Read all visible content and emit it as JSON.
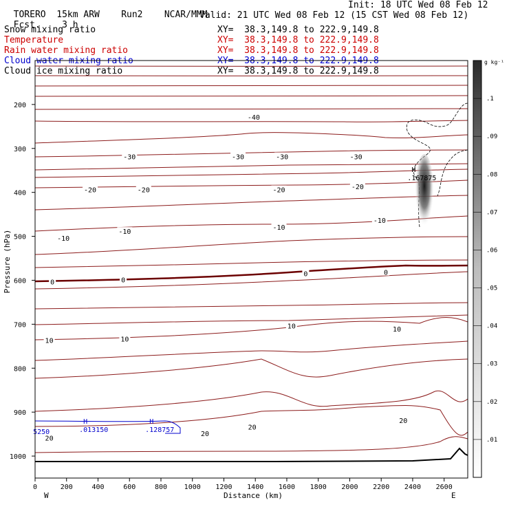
{
  "header": {
    "title": "TORERO  15km ARW",
    "run": "Run2",
    "org": "NCAR/MMM",
    "init": "Init: 18 UTC Wed 08 Feb 12",
    "fcst_label": "Fcst.",
    "fcst_value": "3 h",
    "valid": "Valid: 21 UTC Wed 08 Feb 12 (15 CST Wed 08 Feb 12)"
  },
  "fields": [
    {
      "name": "Snow mixing ratio",
      "xy": "XY=  38.3,149.8 to 222.9,149.8",
      "color": "#000000"
    },
    {
      "name": "Temperature",
      "xy": "XY=  38.3,149.8 to 222.9,149.8",
      "color": "#cc0000"
    },
    {
      "name": "Rain water mixing ratio",
      "xy": "XY=  38.3,149.8 to 222.9,149.8",
      "color": "#cc0000"
    },
    {
      "name": "Cloud water mixing ratio",
      "xy": "XY=  38.3,149.8 to 222.9,149.8",
      "color": "#0000cc"
    },
    {
      "name": "Cloud ice mixing ratio",
      "xy": "XY=  38.3,149.8 to 222.9,149.8",
      "color": "#000000"
    }
  ],
  "chart_data": {
    "type": "cross-section contour",
    "xlabel": "Distance (km)",
    "ylabel": "Pressure (hPa)",
    "xlim": [
      0,
      2750
    ],
    "ylim": [
      1050,
      100
    ],
    "x_ticks": [
      0,
      200,
      400,
      600,
      800,
      1000,
      1200,
      1400,
      1600,
      1800,
      2000,
      2200,
      2400,
      2600
    ],
    "y_ticks": [
      200,
      300,
      400,
      500,
      600,
      700,
      800,
      900,
      1000
    ],
    "left_end_label": "W",
    "right_end_label": "E",
    "colorbar": {
      "unit": "g kg⁻¹",
      "levels": [
        ".01",
        ".02",
        ".03",
        ".04",
        ".05",
        ".06",
        ".07",
        ".08",
        ".09",
        ".1"
      ]
    },
    "temperature_contours": [
      {
        "label": "-40",
        "x": 1390,
        "p": 230
      },
      {
        "label": "-30",
        "x": 600,
        "p": 320
      },
      {
        "label": "-30",
        "x": 1290,
        "p": 320
      },
      {
        "label": "-30",
        "x": 1570,
        "p": 320
      },
      {
        "label": "-30",
        "x": 2040,
        "p": 320
      },
      {
        "label": "-20",
        "x": 350,
        "p": 395
      },
      {
        "label": "-20",
        "x": 690,
        "p": 395
      },
      {
        "label": "-20",
        "x": 1550,
        "p": 395
      },
      {
        "label": "-20",
        "x": 2050,
        "p": 388
      },
      {
        "label": "-10",
        "x": 180,
        "p": 505
      },
      {
        "label": "-10",
        "x": 570,
        "p": 490
      },
      {
        "label": "-10",
        "x": 1550,
        "p": 480
      },
      {
        "label": "-10",
        "x": 2190,
        "p": 465
      },
      {
        "label": "0",
        "x": 110,
        "p": 605
      },
      {
        "label": "0",
        "x": 560,
        "p": 600
      },
      {
        "label": "0",
        "x": 1720,
        "p": 586
      },
      {
        "label": "0",
        "x": 2230,
        "p": 583
      },
      {
        "label": "10",
        "x": 90,
        "p": 738
      },
      {
        "label": "10",
        "x": 570,
        "p": 735
      },
      {
        "label": "10",
        "x": 1630,
        "p": 705
      },
      {
        "label": "10",
        "x": 2300,
        "p": 712
      },
      {
        "label": "20",
        "x": 90,
        "p": 960
      },
      {
        "label": "20",
        "x": 1080,
        "p": 950
      },
      {
        "label": "20",
        "x": 1380,
        "p": 935
      },
      {
        "label": "20",
        "x": 2340,
        "p": 920
      }
    ],
    "cloud_water_maxima": [
      {
        "marker": "H",
        "value": ".013150",
        "x": 320,
        "p": 945
      },
      {
        "marker": "H",
        "value": ".128757",
        "x": 740,
        "p": 945
      },
      {
        "marker": "",
        "value": "5250",
        "x": 40,
        "p": 950
      }
    ],
    "snow_maximum": {
      "marker": "H",
      "value": ".167875",
      "x": 2450,
      "p": 372
    }
  }
}
